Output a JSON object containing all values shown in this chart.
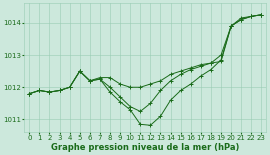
{
  "background_color": "#cce8dc",
  "grid_color": "#99ccb3",
  "line_color": "#1a6b1a",
  "xlabel": "Graphe pression niveau de la mer (hPa)",
  "xlabel_fontsize": 6.0,
  "tick_fontsize": 5.0,
  "xlim": [
    -0.5,
    23.5
  ],
  "ylim": [
    1010.6,
    1014.6
  ],
  "yticks": [
    1011,
    1012,
    1013,
    1014
  ],
  "xticks": [
    0,
    1,
    2,
    3,
    4,
    5,
    6,
    7,
    8,
    9,
    10,
    11,
    12,
    13,
    14,
    15,
    16,
    17,
    18,
    19,
    20,
    21,
    22,
    23
  ],
  "series": [
    [
      1011.8,
      1011.9,
      1011.85,
      1011.9,
      1012.0,
      1012.5,
      1012.2,
      1012.3,
      1012.3,
      1012.1,
      1012.0,
      1012.0,
      1012.1,
      1012.2,
      1012.4,
      1012.5,
      1012.6,
      1012.7,
      1012.75,
      1012.8,
      1013.9,
      1014.15,
      1014.2,
      1014.25
    ],
    [
      1011.8,
      1011.9,
      1011.85,
      1011.9,
      1012.0,
      1012.5,
      1012.2,
      1012.25,
      1012.0,
      1011.7,
      1011.4,
      1011.25,
      1011.5,
      1011.9,
      1012.2,
      1012.4,
      1012.55,
      1012.65,
      1012.75,
      1013.0,
      1013.9,
      1014.1,
      1014.2,
      1014.25
    ],
    [
      1011.8,
      1011.9,
      1011.85,
      1011.9,
      1012.0,
      1012.5,
      1012.2,
      1012.25,
      1011.85,
      1011.55,
      1011.3,
      1010.85,
      1010.82,
      1011.1,
      1011.6,
      1011.9,
      1012.1,
      1012.35,
      1012.55,
      1012.85,
      1013.9,
      1014.1,
      1014.2,
      1014.25
    ]
  ]
}
